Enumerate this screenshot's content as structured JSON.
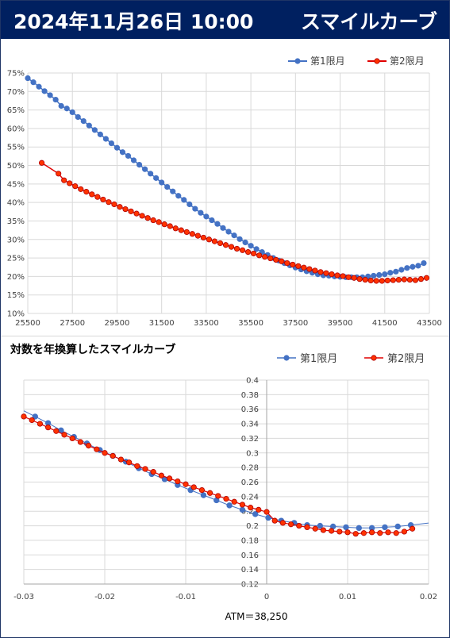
{
  "header": {
    "date": "2024年11月26日 10:00",
    "title": "スマイルカーブ"
  },
  "colors": {
    "banner_bg": "#002060",
    "series1": "#4472c4",
    "series2_fill": "#ff3300",
    "series2_line": "#e00000",
    "grid": "#d9d9d9"
  },
  "chart_data": [
    {
      "type": "line",
      "title": "",
      "legend": [
        "第1限月",
        "第2限月"
      ],
      "legend_position": "top-right",
      "xlim": [
        25500,
        43500
      ],
      "ylim": [
        10,
        75
      ],
      "x_ticks": [
        "25500",
        "27500",
        "29500",
        "31500",
        "33500",
        "35500",
        "37500",
        "39500",
        "41500",
        "43500"
      ],
      "y_ticks": [
        "10%",
        "15%",
        "20%",
        "25%",
        "30%",
        "35%",
        "40%",
        "45%",
        "50%",
        "55%",
        "60%",
        "65%",
        "70%",
        "75%"
      ],
      "grid": true,
      "series": [
        {
          "name": "第1限月",
          "x": [
            25500,
            25750,
            26000,
            26250,
            26500,
            26750,
            27000,
            27250,
            27500,
            27750,
            28000,
            28250,
            28500,
            28750,
            29000,
            29250,
            29500,
            29750,
            30000,
            30250,
            30500,
            30750,
            31000,
            31250,
            31500,
            31750,
            32000,
            32250,
            32500,
            32750,
            33000,
            33250,
            33500,
            33750,
            34000,
            34250,
            34500,
            34750,
            35000,
            35250,
            35500,
            35750,
            36000,
            36250,
            36500,
            36750,
            37000,
            37250,
            37500,
            37750,
            38000,
            38250,
            38500,
            38750,
            39000,
            39250,
            39500,
            39750,
            40000,
            40250,
            40500,
            40750,
            41000,
            41250,
            41500,
            41750,
            42000,
            42250,
            42500,
            42750,
            43000,
            43250
          ],
          "values": [
            73.6,
            72.5,
            71.3,
            70.1,
            69.0,
            67.8,
            66.1,
            65.4,
            64.4,
            63.1,
            62.0,
            60.8,
            59.6,
            58.4,
            57.2,
            56.0,
            54.8,
            53.6,
            52.6,
            51.4,
            50.2,
            49.0,
            47.8,
            46.6,
            45.4,
            44.2,
            43.0,
            41.8,
            40.7,
            39.5,
            38.3,
            37.2,
            36.2,
            35.2,
            34.2,
            33.1,
            32.1,
            31.1,
            30.1,
            29.2,
            28.3,
            27.4,
            26.6,
            25.8,
            25.0,
            24.3,
            23.6,
            23.0,
            22.4,
            21.9,
            21.4,
            21.0,
            20.6,
            20.3,
            20.2,
            20.0,
            19.9,
            19.8,
            19.8,
            19.8,
            19.8,
            20.0,
            20.2,
            20.4,
            20.6,
            21.0,
            21.3,
            21.8,
            22.3,
            22.6,
            22.9,
            23.6
          ]
        },
        {
          "name": "第2限月",
          "x": [
            26125,
            26875,
            27125,
            27375,
            27625,
            27875,
            28125,
            28375,
            28625,
            28875,
            29125,
            29375,
            29625,
            29875,
            30125,
            30375,
            30625,
            30875,
            31125,
            31375,
            31625,
            31875,
            32125,
            32375,
            32625,
            32875,
            33125,
            33375,
            33625,
            33875,
            34125,
            34375,
            34625,
            34875,
            35125,
            35375,
            35625,
            35875,
            36125,
            36375,
            36625,
            36875,
            37125,
            37375,
            37625,
            37875,
            38125,
            38375,
            38625,
            38875,
            39125,
            39375,
            39625,
            39875,
            40125,
            40375,
            40625,
            40875,
            41125,
            41375,
            41625,
            41875,
            42125,
            42375,
            42625,
            42875,
            43125,
            43375
          ],
          "values": [
            50.7,
            47.8,
            46.0,
            45.2,
            44.4,
            43.6,
            42.9,
            42.2,
            41.5,
            40.8,
            40.1,
            39.5,
            38.8,
            38.2,
            37.6,
            37.0,
            36.4,
            35.8,
            35.2,
            34.7,
            34.1,
            33.6,
            33.0,
            32.5,
            32.0,
            31.5,
            31.0,
            30.5,
            30.0,
            29.5,
            29.0,
            28.5,
            28.0,
            27.5,
            27.1,
            26.6,
            26.2,
            25.7,
            25.3,
            24.9,
            24.5,
            24.1,
            23.6,
            23.2,
            22.8,
            22.4,
            22.0,
            21.6,
            21.2,
            20.9,
            20.6,
            20.3,
            20.1,
            19.8,
            19.6,
            19.3,
            19.1,
            18.9,
            18.8,
            18.8,
            18.9,
            19.0,
            19.1,
            19.2,
            19.1,
            19.0,
            19.3,
            19.6
          ]
        }
      ]
    },
    {
      "type": "scatter",
      "title": "対数を年換算したスマイルカーブ",
      "legend": [
        "第1限月",
        "第2限月"
      ],
      "legend_position": "top-right",
      "xlim": [
        -0.03,
        0.02
      ],
      "ylim": [
        0.12,
        0.4
      ],
      "x_ticks": [
        "-0.03",
        "-0.02",
        "-0.01",
        "0",
        "0.01",
        "0.02"
      ],
      "y_ticks": [
        "0.12",
        "0.14",
        "0.16",
        "0.18",
        "0.2",
        "0.22",
        "0.24",
        "0.26",
        "0.28",
        "0.3",
        "0.32",
        "0.34",
        "0.36",
        "0.38",
        "0.4"
      ],
      "annotation": "ATM＝38,250",
      "grid": true,
      "series": [
        {
          "name": "第1限月",
          "x": [
            -0.0286,
            -0.027,
            -0.0254,
            -0.0238,
            -0.0222,
            -0.0206,
            -0.019,
            -0.0174,
            -0.0158,
            -0.0142,
            -0.0126,
            -0.011,
            -0.0094,
            -0.0078,
            -0.0062,
            -0.0046,
            -0.003,
            -0.0014,
            0.0002,
            0.0018,
            0.0034,
            0.005,
            0.0066,
            0.0082,
            0.0098,
            0.0114,
            0.013,
            0.0146,
            0.0162,
            0.0178
          ],
          "values": [
            0.35,
            0.341,
            0.331,
            0.322,
            0.313,
            0.304,
            0.296,
            0.288,
            0.279,
            0.271,
            0.264,
            0.256,
            0.249,
            0.242,
            0.235,
            0.228,
            0.222,
            0.216,
            0.211,
            0.207,
            0.204,
            0.201,
            0.2,
            0.199,
            0.198,
            0.197,
            0.197,
            0.198,
            0.199,
            0.201
          ]
        },
        {
          "name": "第2限月",
          "x": [
            -0.03,
            -0.029,
            -0.028,
            -0.027,
            -0.026,
            -0.025,
            -0.024,
            -0.023,
            -0.022,
            -0.021,
            -0.02,
            -0.019,
            -0.018,
            -0.017,
            -0.016,
            -0.015,
            -0.014,
            -0.013,
            -0.012,
            -0.011,
            -0.01,
            -0.009,
            -0.008,
            -0.007,
            -0.006,
            -0.005,
            -0.004,
            -0.003,
            -0.002,
            -0.001,
            0.0,
            0.001,
            0.002,
            0.003,
            0.004,
            0.005,
            0.006,
            0.007,
            0.008,
            0.009,
            0.01,
            0.011,
            0.012,
            0.013,
            0.014,
            0.015,
            0.016,
            0.017,
            0.018
          ],
          "values": [
            0.35,
            0.345,
            0.34,
            0.335,
            0.33,
            0.325,
            0.32,
            0.315,
            0.31,
            0.305,
            0.3,
            0.296,
            0.291,
            0.287,
            0.282,
            0.278,
            0.274,
            0.269,
            0.265,
            0.261,
            0.257,
            0.253,
            0.249,
            0.245,
            0.241,
            0.237,
            0.233,
            0.229,
            0.225,
            0.222,
            0.219,
            0.207,
            0.204,
            0.202,
            0.2,
            0.198,
            0.196,
            0.194,
            0.193,
            0.192,
            0.191,
            0.189,
            0.19,
            0.191,
            0.19,
            0.191,
            0.19,
            0.192,
            0.196
          ]
        }
      ]
    }
  ]
}
